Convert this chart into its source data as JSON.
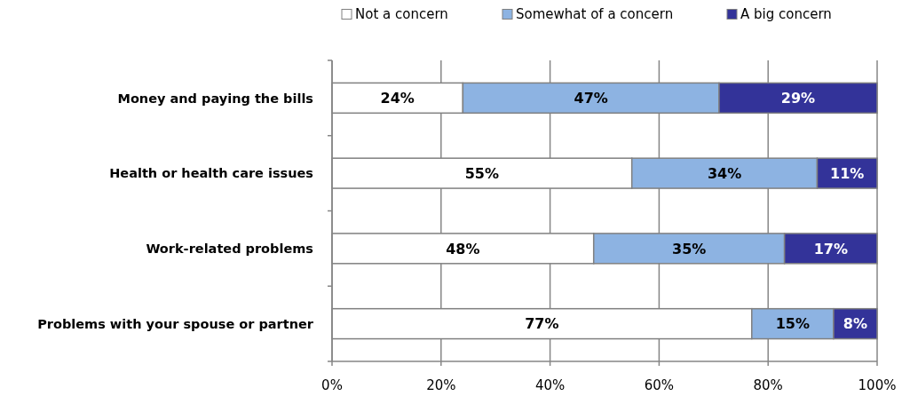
{
  "chart_data": {
    "type": "bar",
    "orientation": "horizontal",
    "stacked": true,
    "categories": [
      "Money and paying the bills",
      "Health or health care issues",
      "Work-related problems",
      "Problems with your spouse or partner"
    ],
    "series": [
      {
        "name": "Not a concern",
        "color": "#ffffff",
        "values": [
          24,
          55,
          48,
          77
        ],
        "value_labels": [
          "24%",
          "55%",
          "48%",
          "77%"
        ]
      },
      {
        "name": "Somewhat of a concern",
        "color": "#8db3e2",
        "values": [
          47,
          34,
          35,
          15
        ],
        "value_labels": [
          "47%",
          "34%",
          "35%",
          "15%"
        ]
      },
      {
        "name": "A big concern",
        "color": "#333399",
        "values": [
          29,
          11,
          17,
          8
        ],
        "value_labels": [
          "29%",
          "11%",
          "17%",
          "8%"
        ]
      }
    ],
    "xlim": [
      0,
      100
    ],
    "xticks": [
      {
        "value": 0,
        "label": "0%"
      },
      {
        "value": 20,
        "label": "20%"
      },
      {
        "value": 40,
        "label": "40%"
      },
      {
        "value": 60,
        "label": "60%"
      },
      {
        "value": 80,
        "label": "80%"
      },
      {
        "value": 100,
        "label": "100%"
      }
    ],
    "grid": "x",
    "legend": "top"
  }
}
